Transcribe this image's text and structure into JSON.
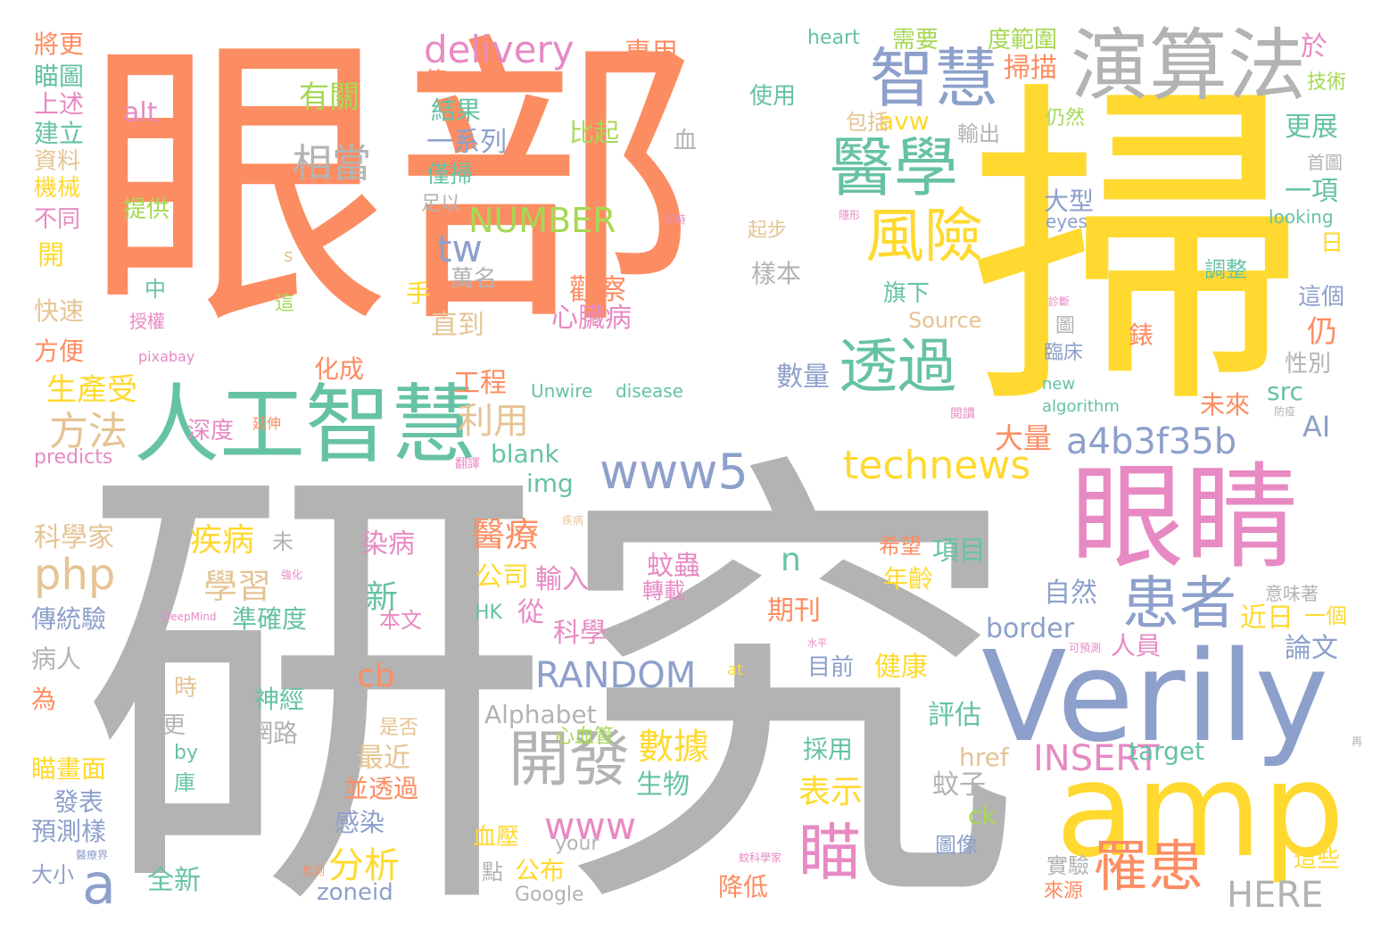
{
  "palette": {
    "orange": "#fc8d62",
    "yellow": "#ffd92f",
    "gray": "#b3b3b3",
    "teal": "#66c2a5",
    "blue": "#8da0cb",
    "pink": "#e78ac3",
    "green": "#a6d854",
    "tan": "#e5c494"
  },
  "words": [
    {
      "text": "眼部",
      "color": "orange"
    },
    {
      "text": "掃",
      "color": "yellow"
    },
    {
      "text": "研究",
      "color": "gray"
    },
    {
      "text": "Verily",
      "color": "blue"
    },
    {
      "text": "amp",
      "color": "yellow"
    },
    {
      "text": "眼睛",
      "color": "pink"
    },
    {
      "text": "人工智慧",
      "color": "teal"
    },
    {
      "text": "演算法",
      "color": "gray"
    },
    {
      "text": "智慧",
      "color": "blue"
    },
    {
      "text": "醫學",
      "color": "teal"
    },
    {
      "text": "風險",
      "color": "yellow"
    },
    {
      "text": "透過",
      "color": "teal"
    },
    {
      "text": "www5",
      "color": "blue"
    },
    {
      "text": "technews",
      "color": "yellow"
    },
    {
      "text": "a4b3f35b",
      "color": "blue"
    },
    {
      "text": "患者",
      "color": "blue"
    },
    {
      "text": "罹患",
      "color": "orange"
    },
    {
      "text": "開發",
      "color": "gray"
    },
    {
      "text": "瞄",
      "color": "pink"
    },
    {
      "text": "delivery",
      "color": "pink"
    },
    {
      "text": "相當",
      "color": "gray"
    },
    {
      "text": "有關",
      "color": "green"
    },
    {
      "text": "NUMBER",
      "color": "green"
    },
    {
      "text": "tw",
      "color": "blue"
    },
    {
      "text": "利用",
      "color": "tan"
    },
    {
      "text": "方法",
      "color": "tan"
    },
    {
      "text": "php",
      "color": "tan"
    },
    {
      "text": "a",
      "color": "blue"
    },
    {
      "text": "RANDOM",
      "color": "blue"
    },
    {
      "text": "INSERT",
      "color": "pink"
    },
    {
      "text": "HERE",
      "color": "gray"
    },
    {
      "text": "www",
      "color": "pink"
    },
    {
      "text": "數據",
      "color": "yellow"
    },
    {
      "text": "分析",
      "color": "yellow"
    },
    {
      "text": "疾病",
      "color": "yellow"
    },
    {
      "text": "學習",
      "color": "tan"
    },
    {
      "text": "醫療",
      "color": "orange"
    },
    {
      "text": "n",
      "color": "teal"
    },
    {
      "text": "新",
      "color": "teal"
    },
    {
      "text": "掃描",
      "color": "orange"
    },
    {
      "text": "avw",
      "color": "yellow"
    },
    {
      "text": "cb",
      "color": "orange"
    },
    {
      "text": "表示",
      "color": "yellow"
    },
    {
      "text": "Alphabet",
      "color": "gray"
    },
    {
      "text": "border",
      "color": "blue"
    },
    {
      "text": "AI",
      "color": "blue"
    },
    {
      "text": "src",
      "color": "teal"
    },
    {
      "text": "blank",
      "color": "teal"
    },
    {
      "text": "img",
      "color": "teal"
    },
    {
      "text": "大量",
      "color": "orange"
    },
    {
      "text": "一系列",
      "color": "blue"
    },
    {
      "text": "比起",
      "color": "green"
    },
    {
      "text": "結果",
      "color": "teal"
    },
    {
      "text": "專用",
      "color": "orange"
    },
    {
      "text": "使用",
      "color": "teal"
    },
    {
      "text": "heart",
      "color": "teal"
    },
    {
      "text": "需要",
      "color": "green"
    },
    {
      "text": "度範圍",
      "color": "green"
    },
    {
      "text": "於",
      "color": "pink"
    },
    {
      "text": "將更",
      "color": "orange"
    },
    {
      "text": "瞄圖",
      "color": "teal"
    },
    {
      "text": "上述",
      "color": "pink"
    },
    {
      "text": "建立",
      "color": "teal"
    },
    {
      "text": "資料",
      "color": "tan"
    },
    {
      "text": "機械",
      "color": "yellow"
    },
    {
      "text": "不同",
      "color": "pink"
    },
    {
      "text": "開",
      "color": "yellow"
    },
    {
      "text": "快速",
      "color": "tan"
    },
    {
      "text": "方便",
      "color": "orange"
    },
    {
      "text": "alt",
      "color": "pink"
    },
    {
      "text": "提供",
      "color": "green"
    },
    {
      "text": "中",
      "color": "teal"
    },
    {
      "text": "授權",
      "color": "pink"
    },
    {
      "text": "s",
      "color": "tan"
    },
    {
      "text": "這",
      "color": "green"
    },
    {
      "text": "觀察",
      "color": "orange"
    },
    {
      "text": "心臟病",
      "color": "pink"
    },
    {
      "text": "萬名",
      "color": "gray"
    },
    {
      "text": "手",
      "color": "yellow"
    },
    {
      "text": "直到",
      "color": "tan"
    },
    {
      "text": "化成",
      "color": "orange"
    },
    {
      "text": "工程",
      "color": "orange"
    },
    {
      "text": "深度",
      "color": "pink"
    },
    {
      "text": "延伸",
      "color": "orange"
    },
    {
      "text": "生產受",
      "color": "yellow"
    },
    {
      "text": "pixabay",
      "color": "pink"
    },
    {
      "text": "predicts",
      "color": "pink"
    },
    {
      "text": "翻譯",
      "color": "pink"
    },
    {
      "text": "科學家",
      "color": "tan"
    },
    {
      "text": "未",
      "color": "gray"
    },
    {
      "text": "傳統驗",
      "color": "blue"
    },
    {
      "text": "病人",
      "color": "gray"
    },
    {
      "text": "為",
      "color": "orange"
    },
    {
      "text": "時",
      "color": "tan"
    },
    {
      "text": "更",
      "color": "gray"
    },
    {
      "text": "by",
      "color": "teal"
    },
    {
      "text": "庫",
      "color": "teal"
    },
    {
      "text": "瞄畫面",
      "color": "yellow"
    },
    {
      "text": "發表",
      "color": "blue"
    },
    {
      "text": "預測樣",
      "color": "blue"
    },
    {
      "text": "大小",
      "color": "blue"
    },
    {
      "text": "全新",
      "color": "teal"
    },
    {
      "text": "神經",
      "color": "teal"
    },
    {
      "text": "網路",
      "color": "gray"
    },
    {
      "text": "準確度",
      "color": "teal"
    },
    {
      "text": "本文",
      "color": "pink"
    },
    {
      "text": "DeepMind",
      "color": "pink"
    },
    {
      "text": "是否",
      "color": "tan"
    },
    {
      "text": "最近",
      "color": "tan"
    },
    {
      "text": "並透過",
      "color": "orange"
    },
    {
      "text": "感染",
      "color": "blue"
    },
    {
      "text": "zoneid",
      "color": "blue"
    },
    {
      "text": "血壓",
      "color": "yellow"
    },
    {
      "text": "點",
      "color": "gray"
    },
    {
      "text": "公布",
      "color": "yellow"
    },
    {
      "text": "Google",
      "color": "gray"
    },
    {
      "text": "your",
      "color": "gray"
    },
    {
      "text": "降低",
      "color": "orange"
    },
    {
      "text": "公司",
      "color": "yellow"
    },
    {
      "text": "輸入",
      "color": "pink"
    },
    {
      "text": "從",
      "color": "pink"
    },
    {
      "text": "科學",
      "color": "pink"
    },
    {
      "text": "期刊",
      "color": "orange"
    },
    {
      "text": "HK",
      "color": "teal"
    },
    {
      "text": "染病",
      "color": "pink"
    },
    {
      "text": "蚊蟲",
      "color": "pink"
    },
    {
      "text": "轉載",
      "color": "pink"
    },
    {
      "text": "生物",
      "color": "teal"
    },
    {
      "text": "心血管",
      "color": "green"
    },
    {
      "text": "目前",
      "color": "blue"
    },
    {
      "text": "健康",
      "color": "yellow"
    },
    {
      "text": "評估",
      "color": "teal"
    },
    {
      "text": "採用",
      "color": "teal"
    },
    {
      "text": "href",
      "color": "tan"
    },
    {
      "text": "蚊子",
      "color": "gray"
    },
    {
      "text": "ck",
      "color": "green"
    },
    {
      "text": "圖像",
      "color": "blue"
    },
    {
      "text": "項目",
      "color": "teal"
    },
    {
      "text": "希望",
      "color": "orange"
    },
    {
      "text": "年齡",
      "color": "yellow"
    },
    {
      "text": "自然",
      "color": "blue"
    },
    {
      "text": "近日",
      "color": "yellow"
    },
    {
      "text": "一個",
      "color": "yellow"
    },
    {
      "text": "論文",
      "color": "blue"
    },
    {
      "text": "人員",
      "color": "pink"
    },
    {
      "text": "意味著",
      "color": "gray"
    },
    {
      "text": "可預測",
      "color": "pink"
    },
    {
      "text": "水平",
      "color": "pink"
    },
    {
      "text": "target",
      "color": "teal"
    },
    {
      "text": "實驗",
      "color": "gray"
    },
    {
      "text": "來源",
      "color": "orange"
    },
    {
      "text": "這些",
      "color": "yellow"
    },
    {
      "text": "at",
      "color": "yellow"
    },
    {
      "text": "再",
      "color": "gray"
    },
    {
      "text": "更展",
      "color": "teal"
    },
    {
      "text": "一項",
      "color": "teal"
    },
    {
      "text": "日",
      "color": "yellow"
    },
    {
      "text": "這個",
      "color": "blue"
    },
    {
      "text": "仍",
      "color": "orange"
    },
    {
      "text": "性別",
      "color": "gray"
    },
    {
      "text": "調整",
      "color": "teal"
    },
    {
      "text": "圖",
      "color": "gray"
    },
    {
      "text": "臨床",
      "color": "blue"
    },
    {
      "text": "錶",
      "color": "orange"
    },
    {
      "text": "Source",
      "color": "tan"
    },
    {
      "text": "旗下",
      "color": "teal"
    },
    {
      "text": "數量",
      "color": "blue"
    },
    {
      "text": "樣本",
      "color": "gray"
    },
    {
      "text": "起步",
      "color": "tan"
    },
    {
      "text": "Unwire",
      "color": "teal"
    },
    {
      "text": "disease",
      "color": "teal"
    },
    {
      "text": "new",
      "color": "teal"
    },
    {
      "text": "algorithm",
      "color": "teal"
    },
    {
      "text": "未來",
      "color": "orange"
    },
    {
      "text": "防疫",
      "color": "gray"
    },
    {
      "text": "大型",
      "color": "blue"
    },
    {
      "text": "eyes",
      "color": "blue"
    },
    {
      "text": "looking",
      "color": "teal"
    },
    {
      "text": "首圖",
      "color": "gray"
    },
    {
      "text": "技術",
      "color": "green"
    },
    {
      "text": "仍然",
      "color": "green"
    },
    {
      "text": "輸出",
      "color": "gray"
    },
    {
      "text": "包括",
      "color": "tan"
    },
    {
      "text": "血",
      "color": "gray"
    },
    {
      "text": "僅掃",
      "color": "teal"
    },
    {
      "text": "傳",
      "color": "orange"
    },
    {
      "text": "足以",
      "color": "gray"
    },
    {
      "text": "閱讀",
      "color": "pink"
    },
    {
      "text": "即時",
      "color": "pink"
    },
    {
      "text": "隱形",
      "color": "pink"
    },
    {
      "text": "診斷",
      "color": "pink"
    },
    {
      "text": "疾病",
      "color": "tan"
    },
    {
      "text": "強化",
      "color": "pink"
    },
    {
      "text": "醫療界",
      "color": "blue"
    },
    {
      "text": "監測",
      "color": "orange"
    },
    {
      "text": "蚊科學家",
      "color": "pink"
    }
  ]
}
